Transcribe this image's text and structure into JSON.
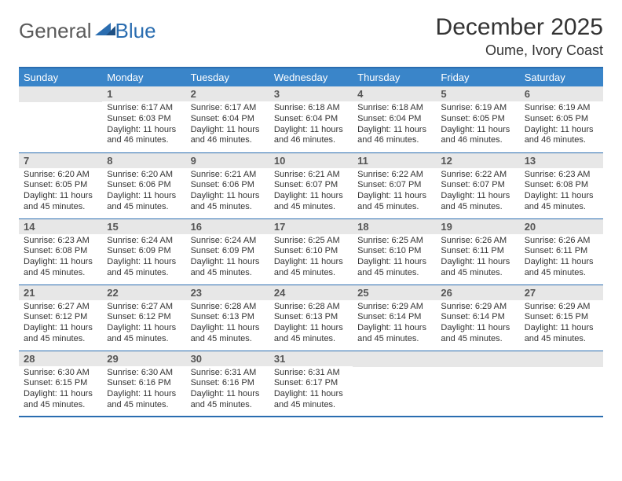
{
  "brand": {
    "part1": "General",
    "part2": "Blue"
  },
  "title": "December 2025",
  "location": "Oume, Ivory Coast",
  "colors": {
    "header_bg": "#3a85c9",
    "border": "#2a6db0",
    "daynum_bg": "#e7e7e7",
    "text": "#333333"
  },
  "weekdays": [
    "Sunday",
    "Monday",
    "Tuesday",
    "Wednesday",
    "Thursday",
    "Friday",
    "Saturday"
  ],
  "weeks": [
    [
      null,
      {
        "n": "1",
        "sr": "6:17 AM",
        "ss": "6:03 PM",
        "dl": "11 hours and 46 minutes."
      },
      {
        "n": "2",
        "sr": "6:17 AM",
        "ss": "6:04 PM",
        "dl": "11 hours and 46 minutes."
      },
      {
        "n": "3",
        "sr": "6:18 AM",
        "ss": "6:04 PM",
        "dl": "11 hours and 46 minutes."
      },
      {
        "n": "4",
        "sr": "6:18 AM",
        "ss": "6:04 PM",
        "dl": "11 hours and 46 minutes."
      },
      {
        "n": "5",
        "sr": "6:19 AM",
        "ss": "6:05 PM",
        "dl": "11 hours and 46 minutes."
      },
      {
        "n": "6",
        "sr": "6:19 AM",
        "ss": "6:05 PM",
        "dl": "11 hours and 46 minutes."
      }
    ],
    [
      {
        "n": "7",
        "sr": "6:20 AM",
        "ss": "6:05 PM",
        "dl": "11 hours and 45 minutes."
      },
      {
        "n": "8",
        "sr": "6:20 AM",
        "ss": "6:06 PM",
        "dl": "11 hours and 45 minutes."
      },
      {
        "n": "9",
        "sr": "6:21 AM",
        "ss": "6:06 PM",
        "dl": "11 hours and 45 minutes."
      },
      {
        "n": "10",
        "sr": "6:21 AM",
        "ss": "6:07 PM",
        "dl": "11 hours and 45 minutes."
      },
      {
        "n": "11",
        "sr": "6:22 AM",
        "ss": "6:07 PM",
        "dl": "11 hours and 45 minutes."
      },
      {
        "n": "12",
        "sr": "6:22 AM",
        "ss": "6:07 PM",
        "dl": "11 hours and 45 minutes."
      },
      {
        "n": "13",
        "sr": "6:23 AM",
        "ss": "6:08 PM",
        "dl": "11 hours and 45 minutes."
      }
    ],
    [
      {
        "n": "14",
        "sr": "6:23 AM",
        "ss": "6:08 PM",
        "dl": "11 hours and 45 minutes."
      },
      {
        "n": "15",
        "sr": "6:24 AM",
        "ss": "6:09 PM",
        "dl": "11 hours and 45 minutes."
      },
      {
        "n": "16",
        "sr": "6:24 AM",
        "ss": "6:09 PM",
        "dl": "11 hours and 45 minutes."
      },
      {
        "n": "17",
        "sr": "6:25 AM",
        "ss": "6:10 PM",
        "dl": "11 hours and 45 minutes."
      },
      {
        "n": "18",
        "sr": "6:25 AM",
        "ss": "6:10 PM",
        "dl": "11 hours and 45 minutes."
      },
      {
        "n": "19",
        "sr": "6:26 AM",
        "ss": "6:11 PM",
        "dl": "11 hours and 45 minutes."
      },
      {
        "n": "20",
        "sr": "6:26 AM",
        "ss": "6:11 PM",
        "dl": "11 hours and 45 minutes."
      }
    ],
    [
      {
        "n": "21",
        "sr": "6:27 AM",
        "ss": "6:12 PM",
        "dl": "11 hours and 45 minutes."
      },
      {
        "n": "22",
        "sr": "6:27 AM",
        "ss": "6:12 PM",
        "dl": "11 hours and 45 minutes."
      },
      {
        "n": "23",
        "sr": "6:28 AM",
        "ss": "6:13 PM",
        "dl": "11 hours and 45 minutes."
      },
      {
        "n": "24",
        "sr": "6:28 AM",
        "ss": "6:13 PM",
        "dl": "11 hours and 45 minutes."
      },
      {
        "n": "25",
        "sr": "6:29 AM",
        "ss": "6:14 PM",
        "dl": "11 hours and 45 minutes."
      },
      {
        "n": "26",
        "sr": "6:29 AM",
        "ss": "6:14 PM",
        "dl": "11 hours and 45 minutes."
      },
      {
        "n": "27",
        "sr": "6:29 AM",
        "ss": "6:15 PM",
        "dl": "11 hours and 45 minutes."
      }
    ],
    [
      {
        "n": "28",
        "sr": "6:30 AM",
        "ss": "6:15 PM",
        "dl": "11 hours and 45 minutes."
      },
      {
        "n": "29",
        "sr": "6:30 AM",
        "ss": "6:16 PM",
        "dl": "11 hours and 45 minutes."
      },
      {
        "n": "30",
        "sr": "6:31 AM",
        "ss": "6:16 PM",
        "dl": "11 hours and 45 minutes."
      },
      {
        "n": "31",
        "sr": "6:31 AM",
        "ss": "6:17 PM",
        "dl": "11 hours and 45 minutes."
      },
      null,
      null,
      null
    ]
  ],
  "labels": {
    "sunrise": "Sunrise:",
    "sunset": "Sunset:",
    "daylight": "Daylight:"
  }
}
